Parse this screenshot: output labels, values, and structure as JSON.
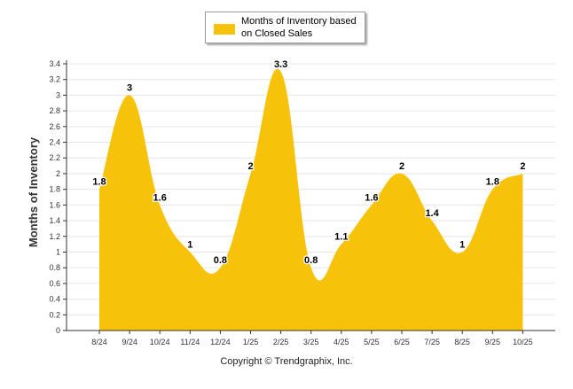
{
  "chart_data": {
    "type": "area",
    "title": "",
    "xlabel": "",
    "ylabel": "Months of Inventory",
    "categories": [
      "8/24",
      "9/24",
      "10/24",
      "11/24",
      "12/24",
      "1/25",
      "2/25",
      "3/25",
      "4/25",
      "5/25",
      "6/25",
      "7/25",
      "8/25",
      "9/25",
      "10/25"
    ],
    "series": [
      {
        "name": "Months of Inventory based on Closed Sales",
        "values": [
          1.8,
          3,
          1.6,
          1,
          0.8,
          2,
          3.3,
          0.8,
          1.1,
          1.6,
          2,
          1.4,
          1,
          1.8,
          2
        ],
        "labels": [
          "1.8",
          "3",
          "1.6",
          "1",
          "0.8",
          "2",
          "3.3",
          "0.8",
          "1.1",
          "1.6",
          "2",
          "1.4",
          "1",
          "1.8",
          "2"
        ],
        "color": "#f7c20a"
      }
    ],
    "yticks": [
      "0",
      "0.2",
      "0.4",
      "0.6",
      "0.8",
      "1",
      "1.2",
      "1.4",
      "1.6",
      "1.8",
      "2",
      "2.2",
      "2.4",
      "2.6",
      "2.8",
      "3",
      "3.2",
      "3.4"
    ],
    "ylim": [
      0,
      3.4
    ],
    "grid": true,
    "legend": "top-center"
  },
  "legend": {
    "label_line1": "Months of Inventory based",
    "label_line2": "on Closed Sales"
  },
  "credit": "Copyright © Trendgraphix, Inc.",
  "colors": {
    "area": "#f7c20a",
    "grid": "#e6e6e6",
    "axis": "#333333"
  }
}
